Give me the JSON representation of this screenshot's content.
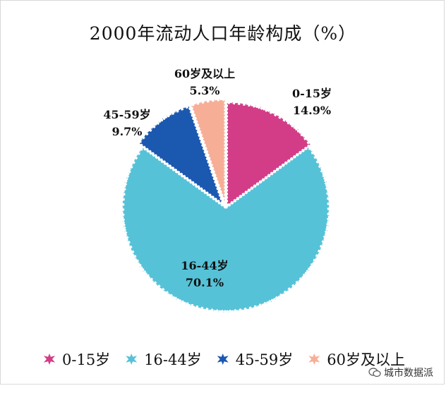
{
  "chart_data": {
    "type": "pie",
    "title": "2000年流动人口年龄构成（%）",
    "categories": [
      "0-15岁",
      "16-44岁",
      "45-59岁",
      "60岁及以上"
    ],
    "values": [
      14.9,
      70.1,
      9.7,
      5.3
    ],
    "labels": [
      "14.9%",
      "70.1%",
      "9.7%",
      "5.3%"
    ],
    "colors": [
      "#d33d87",
      "#56c2d7",
      "#1b58b0",
      "#f7ae96"
    ],
    "legend_position": "bottom",
    "exploded": true
  },
  "watermark": "城市数据派"
}
